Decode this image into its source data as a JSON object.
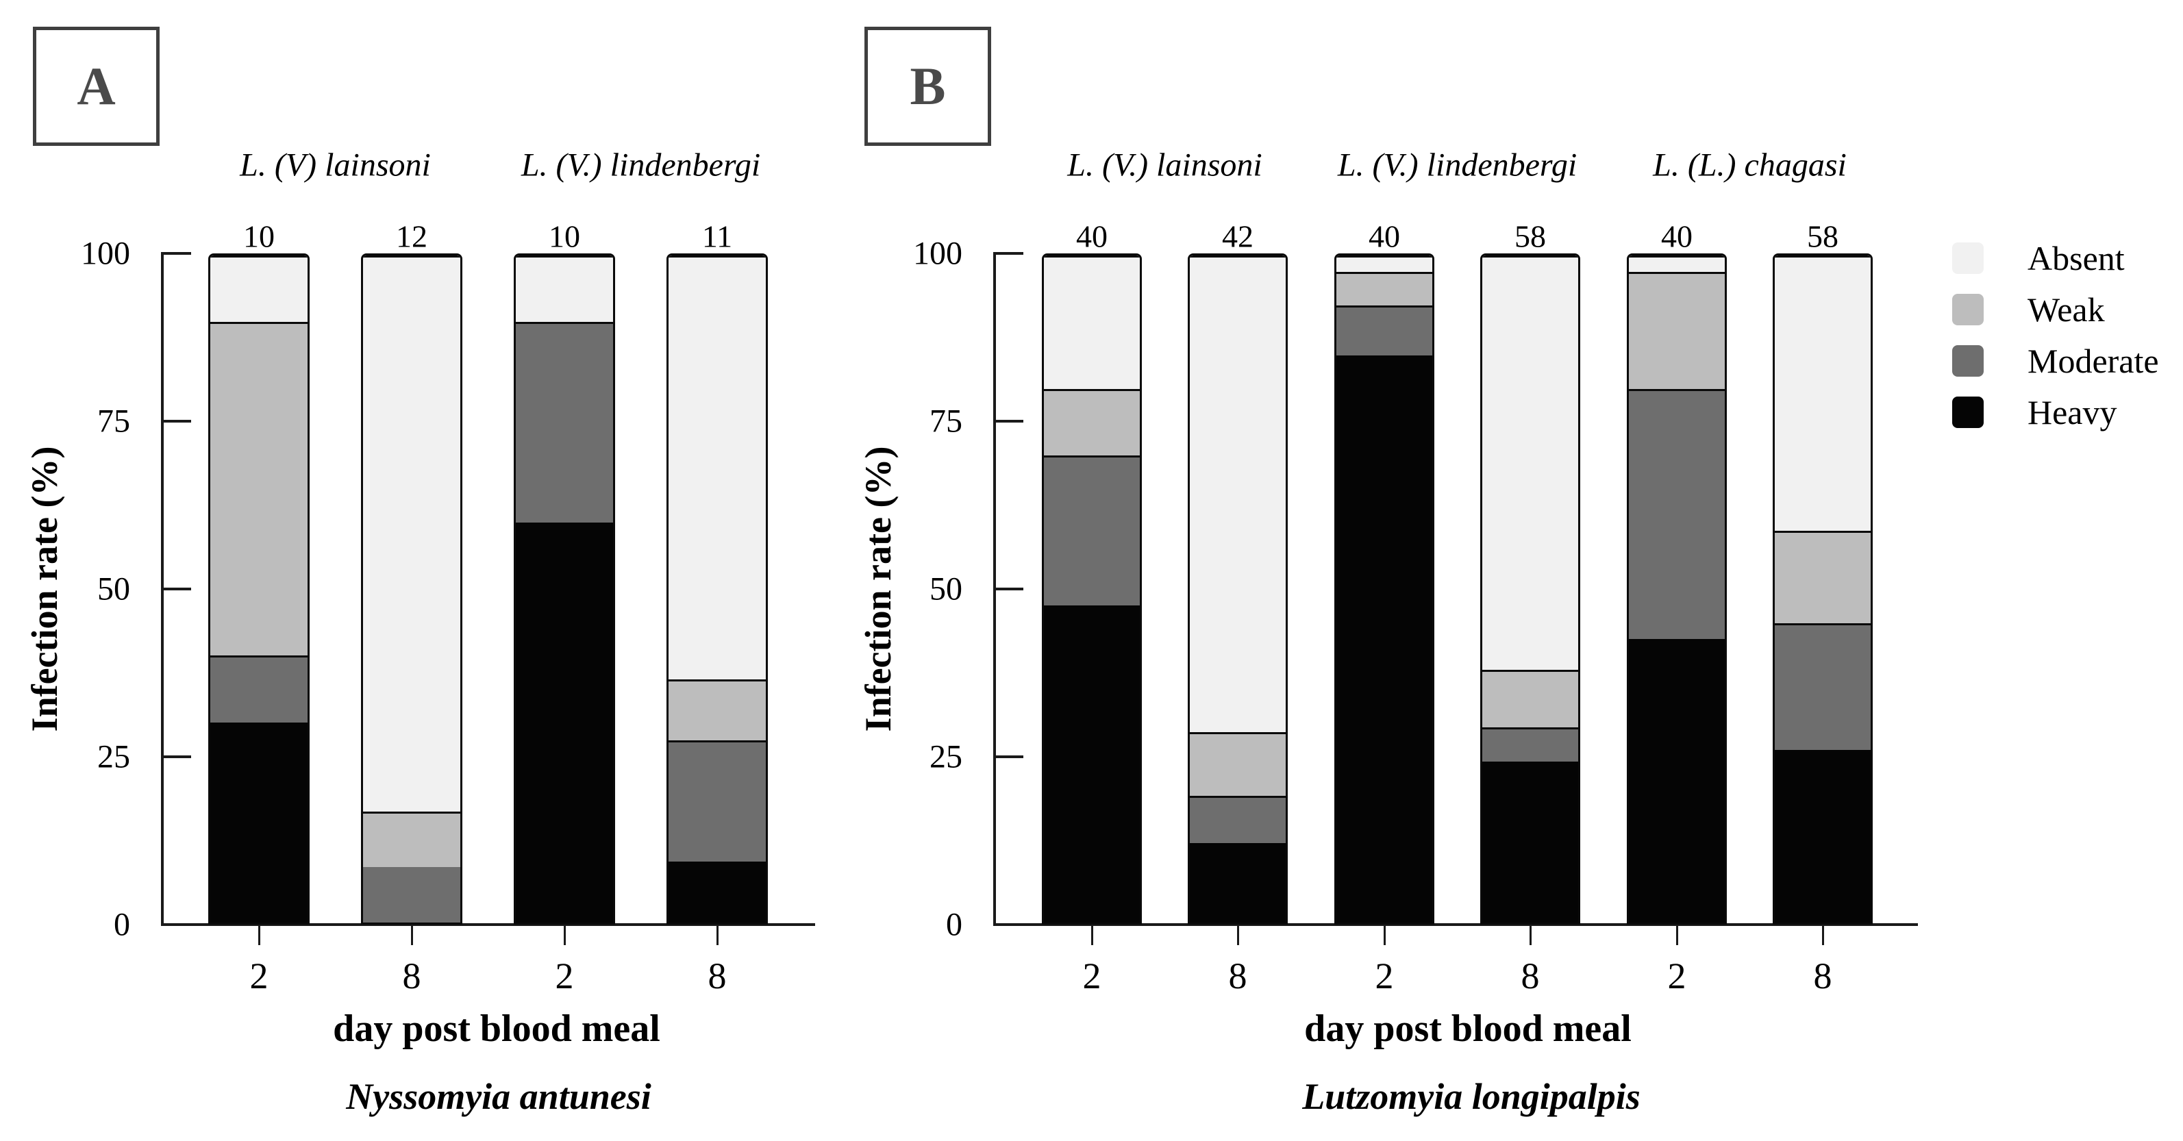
{
  "figure": {
    "background": "#ffffff"
  },
  "colors": {
    "absent": "#f1f1f1",
    "weak": "#bdbdbd",
    "moderate": "#6e6e6e",
    "heavy": "#050505",
    "axis": "#1a1a1a",
    "panel_letter": "#4a4a4a"
  },
  "legend": {
    "position": "right",
    "items": [
      {
        "label": "Absent",
        "color": "#f1f1f1"
      },
      {
        "label": "Weak",
        "color": "#bdbdbd"
      },
      {
        "label": "Moderate",
        "color": "#6e6e6e"
      },
      {
        "label": "Heavy",
        "color": "#050505"
      }
    ]
  },
  "chart_data": [
    {
      "type": "bar",
      "stacked": true,
      "panel_label": "A",
      "species": "Nyssomyia antunesi",
      "xlabel": "day post blood meal",
      "ylabel": "Infection rate (%)",
      "ylim": [
        0,
        100
      ],
      "yticks": [
        100,
        75,
        50,
        25,
        0
      ],
      "grid": false,
      "group_labels": [
        "L. (V) lainsoni",
        "L. (V.) lindenbergi"
      ],
      "categories": [
        "2",
        "8",
        "2",
        "8"
      ],
      "bar_n": [
        "10",
        "12",
        "10",
        "11"
      ],
      "series": [
        {
          "name": "Heavy",
          "color": "#050505",
          "values": [
            30,
            0,
            60,
            9.1
          ]
        },
        {
          "name": "Moderate",
          "color": "#6e6e6e",
          "values": [
            10,
            8.3,
            30,
            18.2
          ]
        },
        {
          "name": "Weak",
          "color": "#bdbdbd",
          "values": [
            50,
            8.3,
            0,
            9.1
          ]
        },
        {
          "name": "Absent",
          "color": "#f1f1f1",
          "values": [
            10,
            83.4,
            10,
            63.6
          ]
        }
      ]
    },
    {
      "type": "bar",
      "stacked": true,
      "panel_label": "B",
      "species": "Lutzomyia longipalpis",
      "xlabel": "day post blood meal",
      "ylabel": "Infection rate (%)",
      "ylim": [
        0,
        100
      ],
      "yticks": [
        100,
        75,
        50,
        25,
        0
      ],
      "grid": false,
      "group_labels": [
        "L. (V.) lainsoni",
        "L. (V.) lindenbergi",
        "L. (L.) chagasi"
      ],
      "categories": [
        "2",
        "8",
        "2",
        "8",
        "2",
        "8"
      ],
      "bar_n": [
        "40",
        "42",
        "40",
        "58",
        "40",
        "58"
      ],
      "series": [
        {
          "name": "Heavy",
          "color": "#050505",
          "values": [
            47.5,
            11.9,
            85,
            24.1,
            42.5,
            25.9
          ]
        },
        {
          "name": "Moderate",
          "color": "#6e6e6e",
          "values": [
            22.5,
            7.1,
            7.5,
            5.2,
            37.5,
            19.0
          ]
        },
        {
          "name": "Weak",
          "color": "#bdbdbd",
          "values": [
            10,
            9.5,
            5,
            8.6,
            17.5,
            13.8
          ]
        },
        {
          "name": "Absent",
          "color": "#f1f1f1",
          "values": [
            20,
            71.5,
            2.5,
            62.1,
            2.5,
            41.3
          ]
        }
      ]
    }
  ]
}
